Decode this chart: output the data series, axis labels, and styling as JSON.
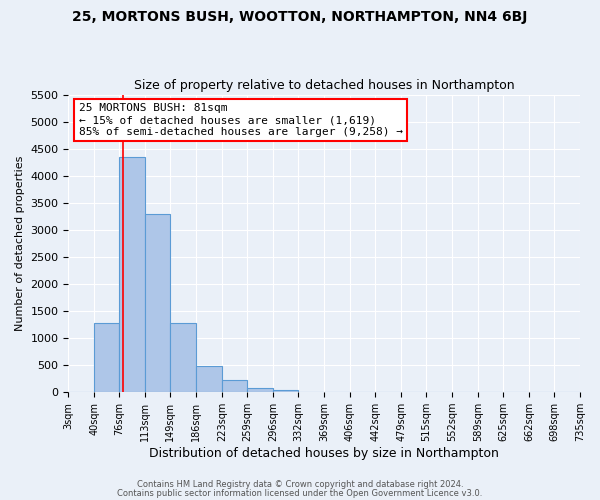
{
  "title": "25, MORTONS BUSH, WOOTTON, NORTHAMPTON, NN4 6BJ",
  "subtitle": "Size of property relative to detached houses in Northampton",
  "xlabel": "Distribution of detached houses by size in Northampton",
  "ylabel": "Number of detached properties",
  "bin_edges": [
    3,
    40,
    76,
    113,
    149,
    186,
    223,
    259,
    296,
    332,
    369,
    406,
    442,
    479,
    515,
    552,
    589,
    625,
    662,
    698,
    735
  ],
  "bar_heights": [
    0,
    1270,
    4350,
    3300,
    1270,
    480,
    220,
    80,
    50,
    0,
    0,
    0,
    0,
    0,
    0,
    0,
    0,
    0,
    0,
    0
  ],
  "bar_color": "#aec6e8",
  "bar_edgecolor": "#5b9bd5",
  "bar_linewidth": 0.8,
  "vline_x": 81,
  "vline_color": "red",
  "vline_linewidth": 1.2,
  "ylim": [
    0,
    5500
  ],
  "yticks": [
    0,
    500,
    1000,
    1500,
    2000,
    2500,
    3000,
    3500,
    4000,
    4500,
    5000,
    5500
  ],
  "annotation_title": "25 MORTONS BUSH: 81sqm",
  "annotation_line1": "← 15% of detached houses are smaller (1,619)",
  "annotation_line2": "85% of semi-detached houses are larger (9,258) →",
  "annotation_box_edgecolor": "red",
  "annotation_box_facecolor": "white",
  "bg_color": "#eaf0f8",
  "footer1": "Contains HM Land Registry data © Crown copyright and database right 2024.",
  "footer2": "Contains public sector information licensed under the Open Government Licence v3.0.",
  "tick_labels": [
    "3sqm",
    "40sqm",
    "76sqm",
    "113sqm",
    "149sqm",
    "186sqm",
    "223sqm",
    "259sqm",
    "296sqm",
    "332sqm",
    "369sqm",
    "406sqm",
    "442sqm",
    "479sqm",
    "515sqm",
    "552sqm",
    "589sqm",
    "625sqm",
    "662sqm",
    "698sqm",
    "735sqm"
  ],
  "grid_color": "#ffffff",
  "grid_linewidth": 0.8,
  "title_fontsize": 10,
  "subtitle_fontsize": 9,
  "ylabel_fontsize": 8,
  "xlabel_fontsize": 9,
  "ytick_fontsize": 8,
  "xtick_fontsize": 7,
  "footer_fontsize": 6,
  "annot_fontsize": 8
}
